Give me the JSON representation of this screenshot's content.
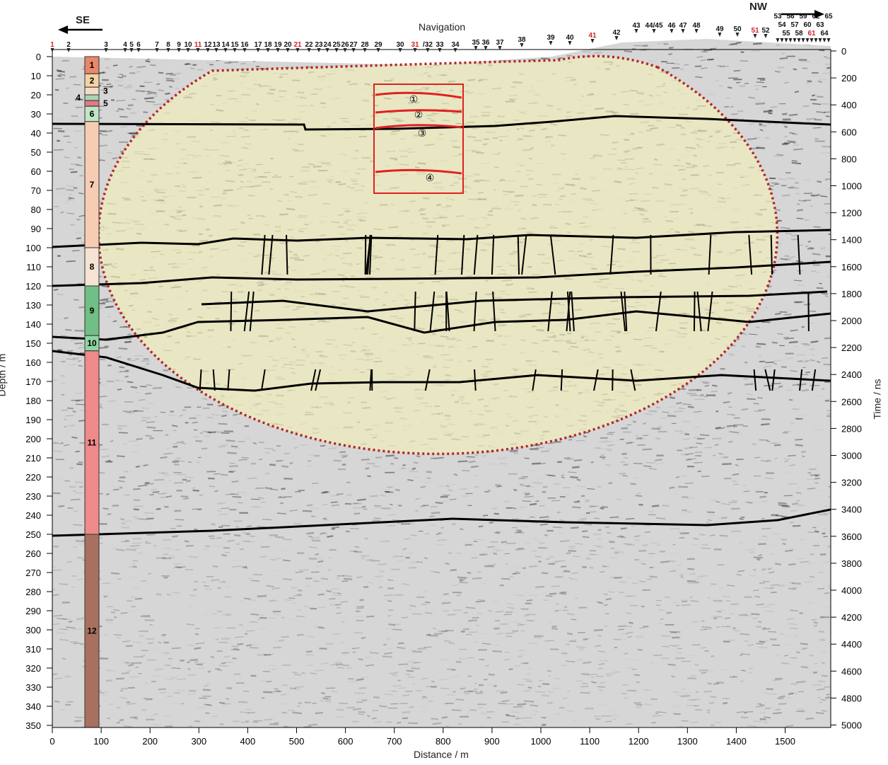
{
  "directions": {
    "left": "SE",
    "right": "NW"
  },
  "navigation_title": "Navigation",
  "navigation_markers": [
    {
      "label": "1",
      "red": true
    },
    {
      "label": "2"
    },
    {
      "label": "3"
    },
    {
      "label": "4"
    },
    {
      "label": "5"
    },
    {
      "label": "6"
    },
    {
      "label": "7"
    },
    {
      "label": "8"
    },
    {
      "label": "9"
    },
    {
      "label": "10"
    },
    {
      "label": "11",
      "red": true
    },
    {
      "label": "12"
    },
    {
      "label": "13"
    },
    {
      "label": "14"
    },
    {
      "label": "15"
    },
    {
      "label": "16"
    },
    {
      "label": "17"
    },
    {
      "label": "18"
    },
    {
      "label": "19"
    },
    {
      "label": "20"
    },
    {
      "label": "21",
      "red": true
    },
    {
      "label": "22"
    },
    {
      "label": "23"
    },
    {
      "label": "24"
    },
    {
      "label": "25"
    },
    {
      "label": "26"
    },
    {
      "label": "27"
    },
    {
      "label": "28"
    },
    {
      "label": "29"
    },
    {
      "label": "30"
    },
    {
      "label": "31",
      "red": true
    },
    {
      "label": "/32"
    },
    {
      "label": "33"
    },
    {
      "label": "34"
    },
    {
      "label": "35"
    },
    {
      "label": "36"
    },
    {
      "label": "37"
    },
    {
      "label": "38"
    },
    {
      "label": "39"
    },
    {
      "label": "40"
    },
    {
      "label": "41",
      "red": true
    },
    {
      "label": "42"
    },
    {
      "label": "43"
    },
    {
      "label": "44/45"
    },
    {
      "label": "46"
    },
    {
      "label": "47"
    },
    {
      "label": "48"
    },
    {
      "label": "49"
    },
    {
      "label": "50"
    },
    {
      "label": "51",
      "red": true
    },
    {
      "label": "52"
    },
    {
      "label": "53"
    },
    {
      "label": "54"
    },
    {
      "label": "55"
    },
    {
      "label": "56"
    },
    {
      "label": "57"
    },
    {
      "label": "58"
    },
    {
      "label": "59"
    },
    {
      "label": "60"
    },
    {
      "label": "61",
      "red": true
    },
    {
      "label": "62"
    },
    {
      "label": "63"
    },
    {
      "label": "64"
    },
    {
      "label": "65"
    }
  ],
  "axes": {
    "left_label": "Depth / m",
    "right_label": "Time / ns",
    "bottom_label": "Distance / m",
    "depth_ticks": [
      0,
      10,
      20,
      30,
      40,
      50,
      60,
      70,
      80,
      90,
      100,
      110,
      120,
      130,
      140,
      150,
      160,
      170,
      180,
      190,
      200,
      210,
      220,
      230,
      240,
      250,
      260,
      270,
      280,
      290,
      300,
      310,
      320,
      330,
      340,
      350
    ],
    "time_ticks": [
      0,
      200,
      400,
      600,
      800,
      1000,
      1200,
      1400,
      1600,
      1800,
      2000,
      2200,
      2400,
      2600,
      2800,
      3000,
      3200,
      3400,
      3600,
      3800,
      4000,
      4200,
      4400,
      4600,
      4800,
      5000
    ],
    "distance_ticks": [
      0,
      100,
      200,
      300,
      400,
      500,
      600,
      700,
      800,
      900,
      1000,
      1100,
      1200,
      1300,
      1400,
      1500
    ]
  },
  "stratigraphic_column": [
    {
      "label": "1",
      "top": 0,
      "bottom": 9,
      "color": "#e8876a"
    },
    {
      "label": "2",
      "top": 9,
      "bottom": 16,
      "color": "#f2d3a3"
    },
    {
      "label": "3",
      "top": 16,
      "bottom": 20,
      "color": "#f3dcc6"
    },
    {
      "label": "4",
      "top": 20,
      "bottom": 23,
      "color": "#a8d5b0"
    },
    {
      "label": "5",
      "top": 23,
      "bottom": 26,
      "color": "#e07a86"
    },
    {
      "label": "6",
      "top": 26,
      "bottom": 34,
      "color": "#bfe6c5"
    },
    {
      "label": "7",
      "top": 34,
      "bottom": 100,
      "color": "#f6cdb3"
    },
    {
      "label": "8",
      "top": 100,
      "bottom": 120,
      "color": "#f6e3d3"
    },
    {
      "label": "9",
      "top": 120,
      "bottom": 146,
      "color": "#6fbf86"
    },
    {
      "label": "10",
      "top": 146,
      "bottom": 154,
      "color": "#8fd6a4"
    },
    {
      "label": "11",
      "top": 154,
      "bottom": 250,
      "color": "#ef8a8a"
    },
    {
      "label": "12",
      "top": 250,
      "bottom": 352,
      "color": "#a8705e"
    }
  ],
  "box_labels": [
    "①",
    "②",
    "③",
    "④"
  ],
  "colors": {
    "highlight": "#f3efb8",
    "dashed_outline": "#b3242a",
    "box": "#e02020",
    "horizon": "#000000"
  }
}
